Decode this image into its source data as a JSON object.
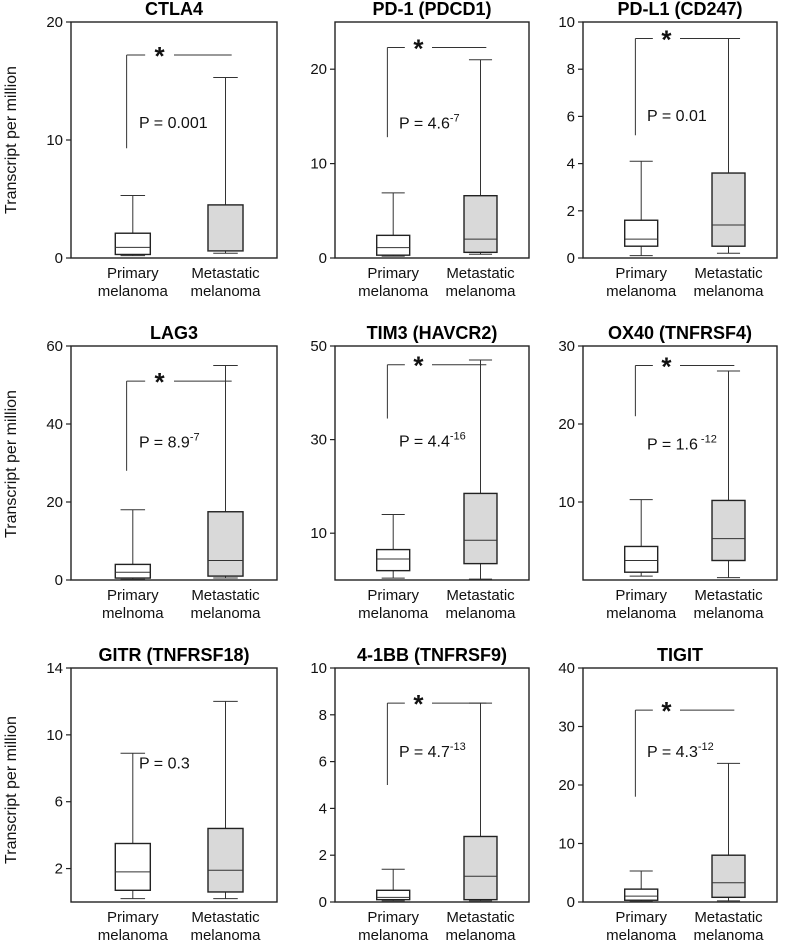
{
  "figure": {
    "ylabel": "Transcript per million"
  },
  "chart_data": [
    {
      "type": "box",
      "title": "CTLA4",
      "ylim": [
        0,
        20
      ],
      "yticks": [
        "0",
        "10",
        "20"
      ],
      "ytick_values": [
        0,
        10,
        20
      ],
      "categories": [
        [
          "Primary",
          "melanoma"
        ],
        [
          "Metastatic",
          "melanoma"
        ]
      ],
      "boxes": [
        {
          "min": 0.2,
          "q1": 0.3,
          "median": 0.9,
          "q3": 2.1,
          "max": 5.3,
          "fill": "#ffffff"
        },
        {
          "min": 0.4,
          "q1": 0.6,
          "median": 0.6,
          "q3": 4.5,
          "max": 15.3,
          "fill": "#d9d9d9"
        }
      ],
      "p_text": "P = 0.001",
      "p_exp": "",
      "significant": true,
      "sig_y": 17.2,
      "sig_start": 9.3,
      "p_y": 11.0
    },
    {
      "type": "box",
      "title": "PD-1 (PDCD1)",
      "ylim": [
        0,
        25
      ],
      "yticks": [
        "0",
        "10",
        "20"
      ],
      "ytick_values": [
        0,
        10,
        20
      ],
      "categories": [
        [
          "Primary",
          "melanoma"
        ],
        [
          "Metastatic",
          "melanoma"
        ]
      ],
      "boxes": [
        {
          "min": 0.2,
          "q1": 0.3,
          "median": 1.1,
          "q3": 2.4,
          "max": 6.9,
          "fill": "#ffffff"
        },
        {
          "min": 0.4,
          "q1": 0.6,
          "median": 2.0,
          "q3": 6.6,
          "max": 21.0,
          "fill": "#d9d9d9"
        }
      ],
      "p_text": "P = 4.6",
      "p_exp": "-7",
      "significant": true,
      "sig_y": 22.3,
      "sig_start": 12.8,
      "p_y": 13.7
    },
    {
      "type": "box",
      "title": "PD-L1 (CD247)",
      "ylim": [
        0,
        10
      ],
      "yticks": [
        "0",
        "2",
        "4",
        "6",
        "8",
        "10"
      ],
      "ytick_values": [
        0,
        2,
        4,
        6,
        8,
        10
      ],
      "categories": [
        [
          "Primary",
          "melanoma"
        ],
        [
          "Metastatic",
          "melanoma"
        ]
      ],
      "boxes": [
        {
          "min": 0.1,
          "q1": 0.5,
          "median": 0.8,
          "q3": 1.6,
          "max": 4.1,
          "fill": "#ffffff"
        },
        {
          "min": 0.2,
          "q1": 0.5,
          "median": 1.4,
          "q3": 3.6,
          "max": 9.3,
          "fill": "#d9d9d9"
        }
      ],
      "p_text": "P = 0.01",
      "p_exp": "",
      "significant": true,
      "sig_y": 9.3,
      "sig_start": 5.2,
      "p_y": 5.8
    },
    {
      "type": "box",
      "title": "LAG3",
      "ylim": [
        0,
        60
      ],
      "yticks": [
        "0",
        "20",
        "40",
        "60"
      ],
      "ytick_values": [
        0,
        20,
        40,
        60
      ],
      "categories": [
        [
          "Primary",
          "melnoma"
        ],
        [
          "Metastatic",
          "melanoma"
        ]
      ],
      "boxes": [
        {
          "min": 0.2,
          "q1": 0.5,
          "median": 2.0,
          "q3": 4.0,
          "max": 18.0,
          "fill": "#ffffff"
        },
        {
          "min": 0.5,
          "q1": 1.0,
          "median": 5.0,
          "q3": 17.5,
          "max": 55.0,
          "fill": "#d9d9d9"
        }
      ],
      "p_text": "P = 8.9",
      "p_exp": "-7",
      "significant": true,
      "sig_y": 51.0,
      "sig_start": 28.0,
      "p_y": 34.0
    },
    {
      "type": "box",
      "title": "TIM3 (HAVCR2)",
      "ylim": [
        0,
        50
      ],
      "yticks": [
        "10",
        "30",
        "50"
      ],
      "ytick_values": [
        10,
        30,
        50
      ],
      "categories": [
        [
          "Primary",
          "melanoma"
        ],
        [
          "Metastatic",
          "melanoma"
        ]
      ],
      "boxes": [
        {
          "min": 0.4,
          "q1": 2.0,
          "median": 4.5,
          "q3": 6.5,
          "max": 14.0,
          "fill": "#ffffff"
        },
        {
          "min": 0.2,
          "q1": 3.5,
          "median": 8.5,
          "q3": 18.5,
          "max": 47.0,
          "fill": "#d9d9d9"
        }
      ],
      "p_text": "P = 4.4",
      "p_exp": "-16",
      "significant": true,
      "sig_y": 46.0,
      "sig_start": 34.5,
      "p_y": 28.5
    },
    {
      "type": "box",
      "title": "OX40 (TNFRSF4)",
      "ylim": [
        0,
        30
      ],
      "yticks": [
        "10",
        "20",
        "30"
      ],
      "ytick_values": [
        10,
        20,
        30
      ],
      "categories": [
        [
          "Primary",
          "melanoma"
        ],
        [
          "Metastatic",
          "melanoma"
        ]
      ],
      "boxes": [
        {
          "min": 0.5,
          "q1": 1.0,
          "median": 2.5,
          "q3": 4.3,
          "max": 10.3,
          "fill": "#ffffff"
        },
        {
          "min": 0.3,
          "q1": 2.5,
          "median": 5.3,
          "q3": 10.2,
          "max": 26.8,
          "fill": "#d9d9d9"
        }
      ],
      "p_text": "P = 1.6",
      "p_exp": " -12",
      "significant": true,
      "sig_y": 27.5,
      "sig_start": 21.0,
      "p_y": 16.7
    },
    {
      "type": "box",
      "title": "GITR (TNFRSF18)",
      "ylim": [
        0,
        14
      ],
      "yticks": [
        "2",
        "6",
        "10",
        "14"
      ],
      "ytick_values": [
        2,
        6,
        10,
        14
      ],
      "categories": [
        [
          "Primary",
          "melanoma"
        ],
        [
          "Metastatic",
          "melanoma"
        ]
      ],
      "boxes": [
        {
          "min": 0.2,
          "q1": 0.7,
          "median": 1.8,
          "q3": 3.5,
          "max": 8.9,
          "fill": "#ffffff"
        },
        {
          "min": 0.2,
          "q1": 0.6,
          "median": 1.9,
          "q3": 4.4,
          "max": 12.0,
          "fill": "#d9d9d9"
        }
      ],
      "p_text": "P = 0.3",
      "p_exp": "",
      "significant": false,
      "p_y": 8.0
    },
    {
      "type": "box",
      "title": "4-1BB (TNFRSF9)",
      "ylim": [
        0,
        10
      ],
      "yticks": [
        "0",
        "2",
        "4",
        "6",
        "8",
        "10"
      ],
      "ytick_values": [
        0,
        2,
        4,
        6,
        8,
        10
      ],
      "categories": [
        [
          "Primary",
          "melanoma"
        ],
        [
          "Metastatic",
          "melanoma"
        ]
      ],
      "boxes": [
        {
          "min": 0.05,
          "q1": 0.1,
          "median": 0.2,
          "q3": 0.5,
          "max": 1.4,
          "fill": "#ffffff"
        },
        {
          "min": 0.05,
          "q1": 0.1,
          "median": 1.1,
          "q3": 2.8,
          "max": 8.5,
          "fill": "#d9d9d9"
        }
      ],
      "p_text": "P = 4.7",
      "p_exp": "-13",
      "significant": true,
      "sig_y": 8.5,
      "sig_start": 5.0,
      "p_y": 6.2
    },
    {
      "type": "box",
      "title": "TIGIT",
      "ylim": [
        0,
        40
      ],
      "yticks": [
        "0",
        "10",
        "20",
        "30",
        "40"
      ],
      "ytick_values": [
        0,
        10,
        20,
        30,
        40
      ],
      "categories": [
        [
          "Primary",
          "melanoma"
        ],
        [
          "Metastatic",
          "melanoma"
        ]
      ],
      "boxes": [
        {
          "min": 0.1,
          "q1": 0.3,
          "median": 1.0,
          "q3": 2.2,
          "max": 5.3,
          "fill": "#ffffff"
        },
        {
          "min": 0.2,
          "q1": 0.8,
          "median": 3.3,
          "q3": 8.0,
          "max": 23.7,
          "fill": "#d9d9d9"
        }
      ],
      "p_text": "P = 4.3",
      "p_exp": "-12",
      "significant": true,
      "sig_y": 32.8,
      "sig_start": 18.0,
      "p_y": 24.8
    }
  ]
}
